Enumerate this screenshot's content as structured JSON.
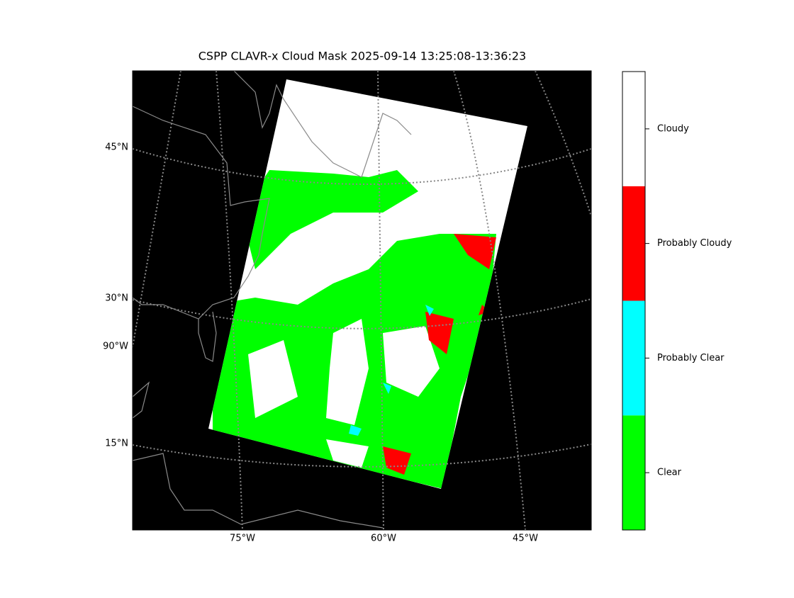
{
  "title": "CSPP CLAVR-x Cloud Mask 2025-09-14 13:25:08-13:36:23",
  "lat_labels": [
    "45°N",
    "30°N",
    "90°W",
    "15°N"
  ],
  "lon_labels": [
    "75°W",
    "60°W",
    "45°W"
  ],
  "colorbar": {
    "classes": [
      {
        "label": "Clear",
        "color": "#00ff00"
      },
      {
        "label": "Probably Clear",
        "color": "#00ffff"
      },
      {
        "label": "Probably Cloudy",
        "color": "#ff0000"
      },
      {
        "label": "Cloudy",
        "color": "#ffffff"
      }
    ]
  }
}
